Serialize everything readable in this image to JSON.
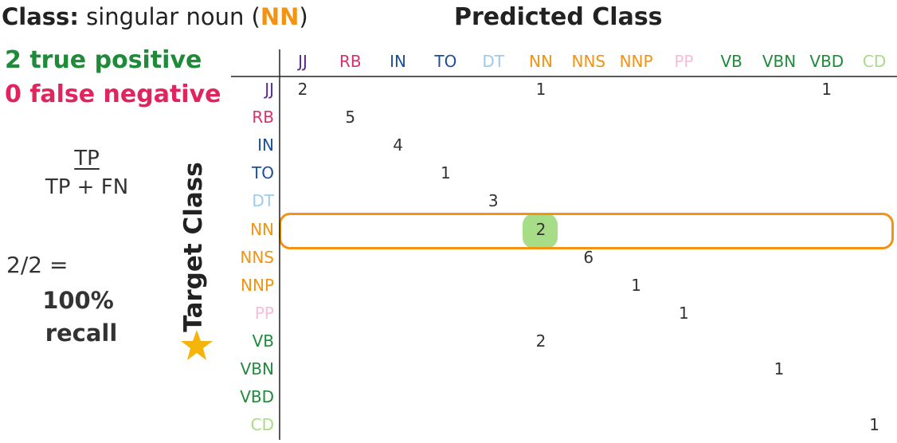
{
  "header": {
    "class_label": "Class:",
    "class_desc": "singular noun (",
    "class_code": "NN",
    "class_close": ")",
    "predicted_title": "Predicted Class",
    "target_title": "Target Class"
  },
  "stats": {
    "true_positive": "2 true positive",
    "false_negative": "0 false negative",
    "formula_numerator": "TP",
    "formula_denominator": "TP + FN",
    "fraction": "2/2 =",
    "percent": "100%",
    "metric": "recall"
  },
  "colors": {
    "JJ": "#5b2a86",
    "RB": "#d6336c",
    "IN": "#1d4e9e",
    "TO": "#1d4e9e",
    "DT": "#9ccbee",
    "NN": "#f39314",
    "NNS": "#f39314",
    "NNP": "#f39314",
    "PP": "#f7bcd9",
    "VB": "#1f8b3a",
    "VBN": "#1f8b3a",
    "VBD": "#1f8b3a",
    "CD": "#a6dd86",
    "true_positive": "#1f8b3a",
    "false_negative": "#e0245e",
    "highlight_row": "#f39314",
    "highlight_cell": "#a6dd86"
  },
  "chart_data": {
    "type": "table",
    "title": "Predicted Class",
    "ylabel": "Target Class",
    "columns": [
      "JJ",
      "RB",
      "IN",
      "TO",
      "DT",
      "NN",
      "NNS",
      "NNP",
      "PP",
      "VB",
      "VBN",
      "VBD",
      "CD"
    ],
    "rows": [
      "JJ",
      "RB",
      "IN",
      "TO",
      "DT",
      "NN",
      "NNS",
      "NNP",
      "PP",
      "VB",
      "VBN",
      "VBD",
      "CD"
    ],
    "cells": [
      {
        "row": "JJ",
        "col": "JJ",
        "value": 2
      },
      {
        "row": "JJ",
        "col": "NN",
        "value": 1
      },
      {
        "row": "JJ",
        "col": "VBD",
        "value": 1
      },
      {
        "row": "RB",
        "col": "RB",
        "value": 5
      },
      {
        "row": "IN",
        "col": "IN",
        "value": 4
      },
      {
        "row": "TO",
        "col": "TO",
        "value": 1
      },
      {
        "row": "DT",
        "col": "DT",
        "value": 3
      },
      {
        "row": "NN",
        "col": "NN",
        "value": 2
      },
      {
        "row": "NNS",
        "col": "NNS",
        "value": 6
      },
      {
        "row": "NNP",
        "col": "NNP",
        "value": 1
      },
      {
        "row": "PP",
        "col": "PP",
        "value": 1
      },
      {
        "row": "VB",
        "col": "NN",
        "value": 2
      },
      {
        "row": "VBN",
        "col": "VBN",
        "value": 1
      },
      {
        "row": "CD",
        "col": "CD",
        "value": 1
      }
    ],
    "highlight_row": "NN",
    "highlight_cell": {
      "row": "NN",
      "col": "NN"
    }
  }
}
